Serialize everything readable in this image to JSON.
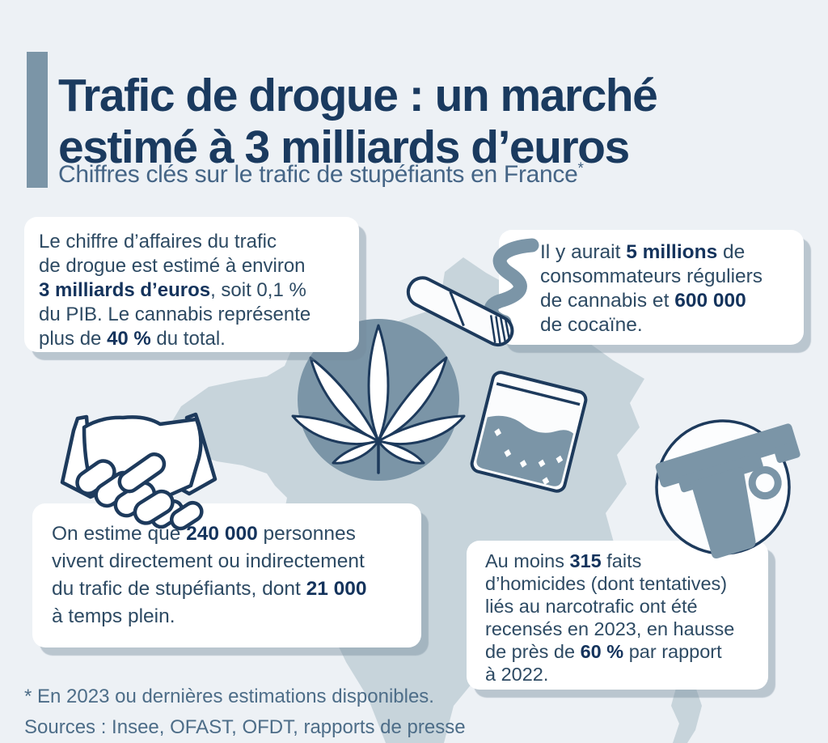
{
  "header": {
    "title_line1": "Trafic de drogue : un marché",
    "title_line2": "estimé à 3 milliards d’euros",
    "subtitle": "Chiffres clés sur le trafic de stupéfiants en France",
    "subtitle_asterisk": "*"
  },
  "cards": {
    "revenue": {
      "segments": [
        {
          "t": "Le chiffre d’affaires du trafic"
        },
        {
          "br": true
        },
        {
          "t": "de drogue est estimé à environ"
        },
        {
          "br": true
        },
        {
          "t": "3 milliards d’euros",
          "b": true
        },
        {
          "t": ", soit 0,1 %"
        },
        {
          "br": true
        },
        {
          "t": "du PIB. Le cannabis représente"
        },
        {
          "br": true
        },
        {
          "t": "plus de "
        },
        {
          "t": "40 %",
          "b": true
        },
        {
          "t": " du total."
        }
      ]
    },
    "consumers": {
      "segments": [
        {
          "t": "Il y aurait "
        },
        {
          "t": "5 millions",
          "b": true
        },
        {
          "t": " de"
        },
        {
          "br": true
        },
        {
          "t": "consommateurs réguliers"
        },
        {
          "br": true
        },
        {
          "t": "de cannabis et "
        },
        {
          "t": "600 000",
          "b": true
        },
        {
          "br": true
        },
        {
          "t": "de cocaïne."
        }
      ]
    },
    "jobs": {
      "segments": [
        {
          "t": "On estime que "
        },
        {
          "t": "240 000",
          "b": true
        },
        {
          "t": " personnes"
        },
        {
          "br": true
        },
        {
          "t": "vivent directement ou indirectement"
        },
        {
          "br": true
        },
        {
          "t": "du trafic de stupéfiants, dont "
        },
        {
          "t": "21 000",
          "b": true
        },
        {
          "br": true
        },
        {
          "t": "à temps plein."
        }
      ]
    },
    "homicides": {
      "segments": [
        {
          "t": "Au moins "
        },
        {
          "t": "315",
          "b": true
        },
        {
          "t": " faits"
        },
        {
          "br": true
        },
        {
          "t": "d’homicides (dont tentatives)"
        },
        {
          "br": true
        },
        {
          "t": "liés au narcotrafic ont été"
        },
        {
          "br": true
        },
        {
          "t": "recensés en 2023, en hausse"
        },
        {
          "br": true
        },
        {
          "t": "de près de "
        },
        {
          "t": "60 %",
          "b": true
        },
        {
          "t": " par rapport"
        },
        {
          "br": true
        },
        {
          "t": "à 2022."
        }
      ]
    }
  },
  "footer": {
    "note": "* En 2023 ou dernières estimations disponibles.",
    "sources": "Sources : Insee, OFAST, OFDT, rapports de presse"
  },
  "icons": {
    "cannabis_leaf": "cannabis-leaf-icon",
    "joint": "joint-icon",
    "smoke": "smoke-icon",
    "handshake": "handshake-icon",
    "drug_bag": "drug-bag-icon",
    "gun": "gun-icon",
    "map": "france-map"
  },
  "colors": {
    "background": "#edf1f5",
    "map_fill": "#c7d4db",
    "steel_accent": "#7b95a7",
    "navy_outline": "#1d3a5c",
    "title_text": "#1a3a5f",
    "body_text": "#2d4a63",
    "emphasis_text": "#14335c",
    "subtitle_text": "#456586",
    "footer_text": "#4d6d88",
    "card_background": "#ffffff"
  }
}
